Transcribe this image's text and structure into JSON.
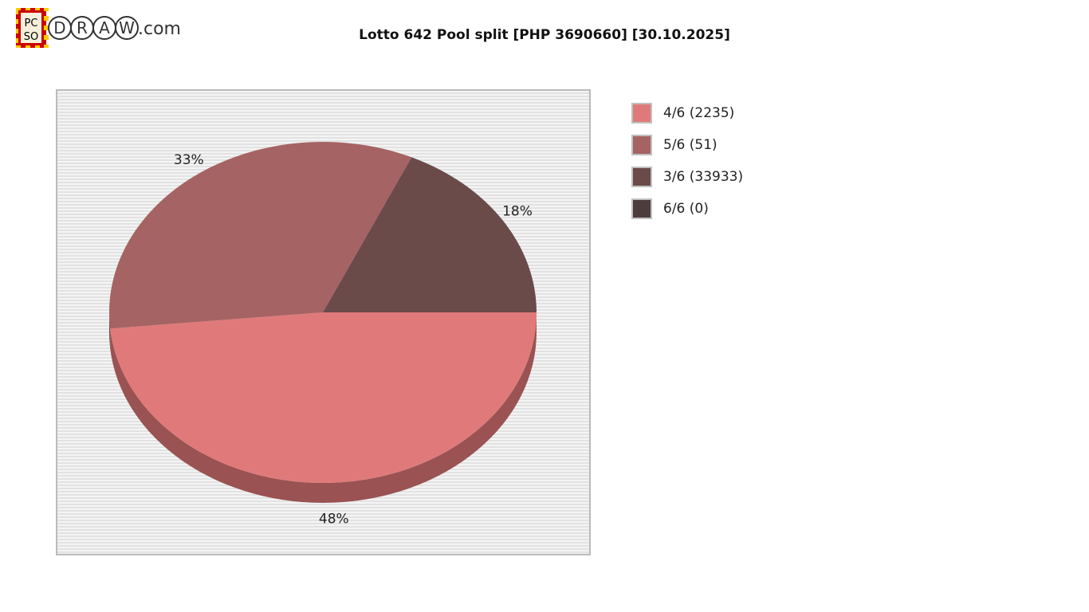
{
  "logo": {
    "text": "PCSO DRAW.com"
  },
  "chart_data": {
    "type": "pie",
    "title": "Lotto 642 Pool split [PHP 3690660] [30.10.2025]",
    "slices": [
      {
        "label": "4/6 (2235)",
        "value": 48,
        "pct_label": "48%",
        "color": "#e07a7a",
        "side_color": "#9a5252"
      },
      {
        "label": "5/6 (51)",
        "value": 33,
        "pct_label": "33%",
        "color": "#a66363",
        "side_color": "#7a4545"
      },
      {
        "label": "3/6 (33933)",
        "value": 18,
        "pct_label": "18%",
        "color": "#6b4a4a",
        "side_color": "#4f3535"
      },
      {
        "label": "6/6 (0)",
        "value": 0,
        "pct_label": "",
        "color": "#4d3c3c",
        "side_color": "#3a2d2d"
      }
    ],
    "legend_position": "right",
    "style": "3d"
  }
}
